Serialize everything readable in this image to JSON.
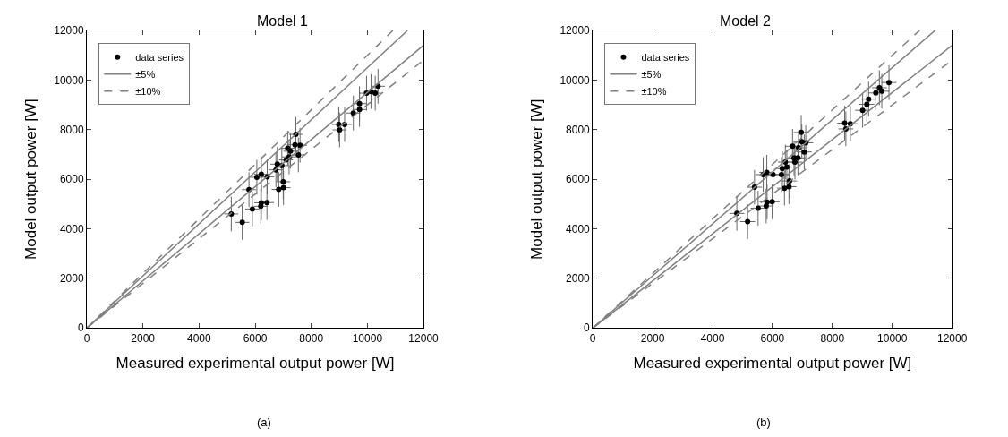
{
  "chart_data": [
    {
      "type": "scatter",
      "title": "Model 1",
      "xlabel": "Measured experimental output power [W]",
      "ylabel": "Model output power [W]",
      "annotations": [
        "(a)"
      ],
      "xlim": [
        0,
        12000
      ],
      "ylim": [
        0,
        12000
      ],
      "xticks": [
        0,
        2000,
        4000,
        6000,
        8000,
        10000,
        12000
      ],
      "yticks": [
        0,
        2000,
        4000,
        6000,
        8000,
        10000,
        12000
      ],
      "legend": "top left",
      "series": [
        {
          "name": "data series",
          "marker": "circle",
          "color": "#000000",
          "x": [
            5150,
            5540,
            5780,
            5900,
            6060,
            6220,
            6200,
            6220,
            6420,
            6430,
            6740,
            6790,
            6840,
            7000,
            7010,
            6950,
            7100,
            7160,
            7210,
            7260,
            7420,
            7450,
            7540,
            7600,
            8980,
            9190,
            9010,
            9500,
            9720,
            9720,
            9970,
            10130,
            10280,
            10380
          ],
          "values": [
            4600,
            4260,
            5580,
            4800,
            6080,
            6200,
            4910,
            5050,
            5060,
            6100,
            6380,
            6610,
            5590,
            5900,
            5660,
            6550,
            6780,
            7250,
            6900,
            7130,
            7390,
            7810,
            6980,
            7370,
            8210,
            8210,
            7990,
            8670,
            8810,
            9050,
            9470,
            9540,
            9470,
            9750
          ],
          "errors": [
            700,
            700,
            700,
            700,
            700,
            700,
            700,
            700,
            700,
            700,
            700,
            700,
            700,
            700,
            700,
            700,
            700,
            700,
            700,
            700,
            700,
            700,
            700,
            700,
            700,
            700,
            700,
            700,
            700,
            700,
            700,
            700,
            700,
            700
          ],
          "xerrors": [
            250,
            250,
            250,
            250,
            250,
            250,
            250,
            250,
            250,
            250,
            250,
            250,
            250,
            250,
            250,
            250,
            250,
            250,
            250,
            250,
            250,
            250,
            250,
            250,
            250,
            250,
            250,
            250,
            250,
            250,
            250,
            250,
            250,
            250
          ]
        },
        {
          "name": "±5%",
          "type": "line",
          "color": "#808080",
          "line_style": "solid",
          "x": [
            0,
            11430
          ],
          "values": [
            0,
            12000
          ]
        },
        {
          "type": "line",
          "color": "#808080",
          "line_style": "solid",
          "x": [
            0,
            12000
          ],
          "values": [
            0,
            11400
          ]
        },
        {
          "name": "±10%",
          "type": "line",
          "color": "#808080",
          "line_style": "dashed",
          "x": [
            0,
            10910
          ],
          "values": [
            0,
            12000
          ]
        },
        {
          "type": "line",
          "color": "#808080",
          "line_style": "dashed",
          "x": [
            0,
            12000
          ],
          "values": [
            0,
            10800
          ]
        }
      ]
    },
    {
      "type": "scatter",
      "title": "Model 2",
      "xlabel": "Measured experimental output power [W]",
      "ylabel": "Model output power [W]",
      "annotations": [
        "(b)"
      ],
      "xlim": [
        0,
        12000
      ],
      "ylim": [
        0,
        12000
      ],
      "xticks": [
        0,
        2000,
        4000,
        6000,
        8000,
        10000,
        12000
      ],
      "yticks": [
        0,
        2000,
        4000,
        6000,
        8000,
        10000,
        12000
      ],
      "legend": "top left",
      "series": [
        {
          "name": "data series",
          "marker": "circle",
          "color": "#000000",
          "x": [
            4810,
            5170,
            5400,
            5520,
            5690,
            5810,
            5790,
            5820,
            5990,
            6020,
            6300,
            6330,
            6430,
            6480,
            6400,
            6550,
            6570,
            6670,
            6720,
            6750,
            6850,
            6870,
            6960,
            6980,
            7060,
            7110,
            8410,
            8600,
            8450,
            9010,
            9150,
            9210,
            9450,
            9570,
            9650,
            9890
          ],
          "values": [
            4620,
            4290,
            5680,
            4830,
            6190,
            6280,
            4920,
            5080,
            5090,
            6190,
            6190,
            6430,
            6690,
            6490,
            5640,
            5700,
            5930,
            7330,
            6860,
            6690,
            6860,
            7270,
            7890,
            7510,
            7100,
            7470,
            8260,
            8240,
            8030,
            8780,
            9020,
            9230,
            9480,
            9690,
            9550,
            9900
          ],
          "errors": [
            700,
            700,
            700,
            700,
            700,
            700,
            700,
            700,
            700,
            700,
            700,
            700,
            700,
            700,
            700,
            700,
            700,
            700,
            700,
            700,
            700,
            700,
            700,
            700,
            700,
            700,
            700,
            700,
            700,
            700,
            700,
            700,
            700,
            700,
            700,
            700
          ],
          "xerrors": [
            250,
            250,
            250,
            250,
            250,
            250,
            250,
            250,
            250,
            250,
            250,
            250,
            250,
            250,
            250,
            250,
            250,
            250,
            250,
            250,
            250,
            250,
            250,
            250,
            250,
            250,
            250,
            250,
            250,
            250,
            250,
            250,
            250,
            250,
            250,
            250
          ]
        },
        {
          "name": "±5%",
          "type": "line",
          "color": "#808080",
          "line_style": "solid",
          "x": [
            0,
            11430
          ],
          "values": [
            0,
            12000
          ]
        },
        {
          "type": "line",
          "color": "#808080",
          "line_style": "solid",
          "x": [
            0,
            12000
          ],
          "values": [
            0,
            11400
          ]
        },
        {
          "name": "±10%",
          "type": "line",
          "color": "#808080",
          "line_style": "dashed",
          "x": [
            0,
            10910
          ],
          "values": [
            0,
            12000
          ]
        },
        {
          "type": "line",
          "color": "#808080",
          "line_style": "dashed",
          "x": [
            0,
            12000
          ],
          "values": [
            0,
            10800
          ]
        }
      ]
    }
  ]
}
